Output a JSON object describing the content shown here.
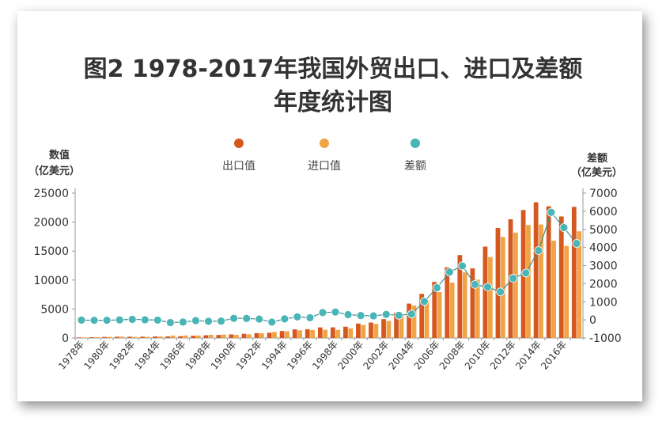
{
  "chart_data": {
    "type": "bar",
    "title": "图2 1978-2017年我国外贸出口、进口及差额",
    "subtitle": "年度统计图",
    "ylabel_left": [
      "数值",
      "（亿美元）"
    ],
    "ylabel_right": [
      "差额",
      "（亿美元）"
    ],
    "ylim_left": [
      0,
      25000
    ],
    "ylim_right": [
      -1000,
      7000
    ],
    "yticks_left": [
      "25000",
      "20000",
      "15000",
      "10000",
      "5000",
      "0"
    ],
    "yticks_right": [
      "7000",
      "6000",
      "5000",
      "4000",
      "3000",
      "2000",
      "1000",
      "0",
      "-1000"
    ],
    "legend": [
      "出口值",
      "进口值",
      "差额"
    ],
    "legend_position": "top",
    "colors": {
      "export": "#d4581f",
      "import": "#f0a445",
      "balance": "#4ab5b6",
      "axis": "#999999"
    },
    "years": [
      1978,
      1979,
      1980,
      1981,
      1982,
      1983,
      1984,
      1985,
      1986,
      1987,
      1988,
      1989,
      1990,
      1991,
      1992,
      1993,
      1994,
      1995,
      1996,
      1997,
      1998,
      1999,
      2000,
      2001,
      2002,
      2003,
      2004,
      2005,
      2006,
      2007,
      2008,
      2009,
      2010,
      2011,
      2012,
      2013,
      2014,
      2015,
      2016,
      2017
    ],
    "xtick_labels": [
      "1978年",
      "1980年",
      "1982年",
      "1984年",
      "1986年",
      "1988年",
      "1990年",
      "1992年",
      "1994年",
      "1996年",
      "1998年",
      "2000年",
      "2002年",
      "2004年",
      "2006年",
      "2008年",
      "2010年",
      "2012年",
      "2014年",
      "2016年"
    ],
    "series": [
      {
        "name": "出口值",
        "type": "bar",
        "axis": "left",
        "values": [
          98,
          137,
          181,
          220,
          223,
          222,
          261,
          274,
          309,
          394,
          475,
          525,
          621,
          719,
          849,
          917,
          1210,
          1488,
          1511,
          1828,
          1837,
          1949,
          2492,
          2661,
          3256,
          4382,
          5933,
          7620,
          9689,
          12205,
          14307,
          12016,
          15778,
          18984,
          20487,
          22090,
          23423,
          22735,
          20976,
          22633
        ]
      },
      {
        "name": "进口值",
        "type": "bar",
        "axis": "left",
        "values": [
          109,
          157,
          200,
          220,
          193,
          214,
          274,
          423,
          429,
          432,
          553,
          591,
          534,
          638,
          806,
          1040,
          1156,
          1321,
          1388,
          1424,
          1402,
          1657,
          2251,
          2436,
          2952,
          4128,
          5612,
          6600,
          7915,
          9561,
          11326,
          10059,
          13962,
          17435,
          18184,
          19500,
          19592,
          16796,
          15879,
          18410
        ]
      },
      {
        "name": "差额",
        "type": "line",
        "axis": "right",
        "values": [
          -11,
          -20,
          -19,
          0,
          30,
          8,
          -13,
          -149,
          -120,
          -38,
          -78,
          -66,
          87,
          81,
          43,
          -122,
          54,
          167,
          122,
          404,
          435,
          292,
          241,
          225,
          304,
          254,
          321,
          1020,
          1775,
          2644,
          2981,
          1957,
          1815,
          1549,
          2303,
          2590,
          3831,
          5939,
          5097,
          4223
        ]
      }
    ]
  }
}
